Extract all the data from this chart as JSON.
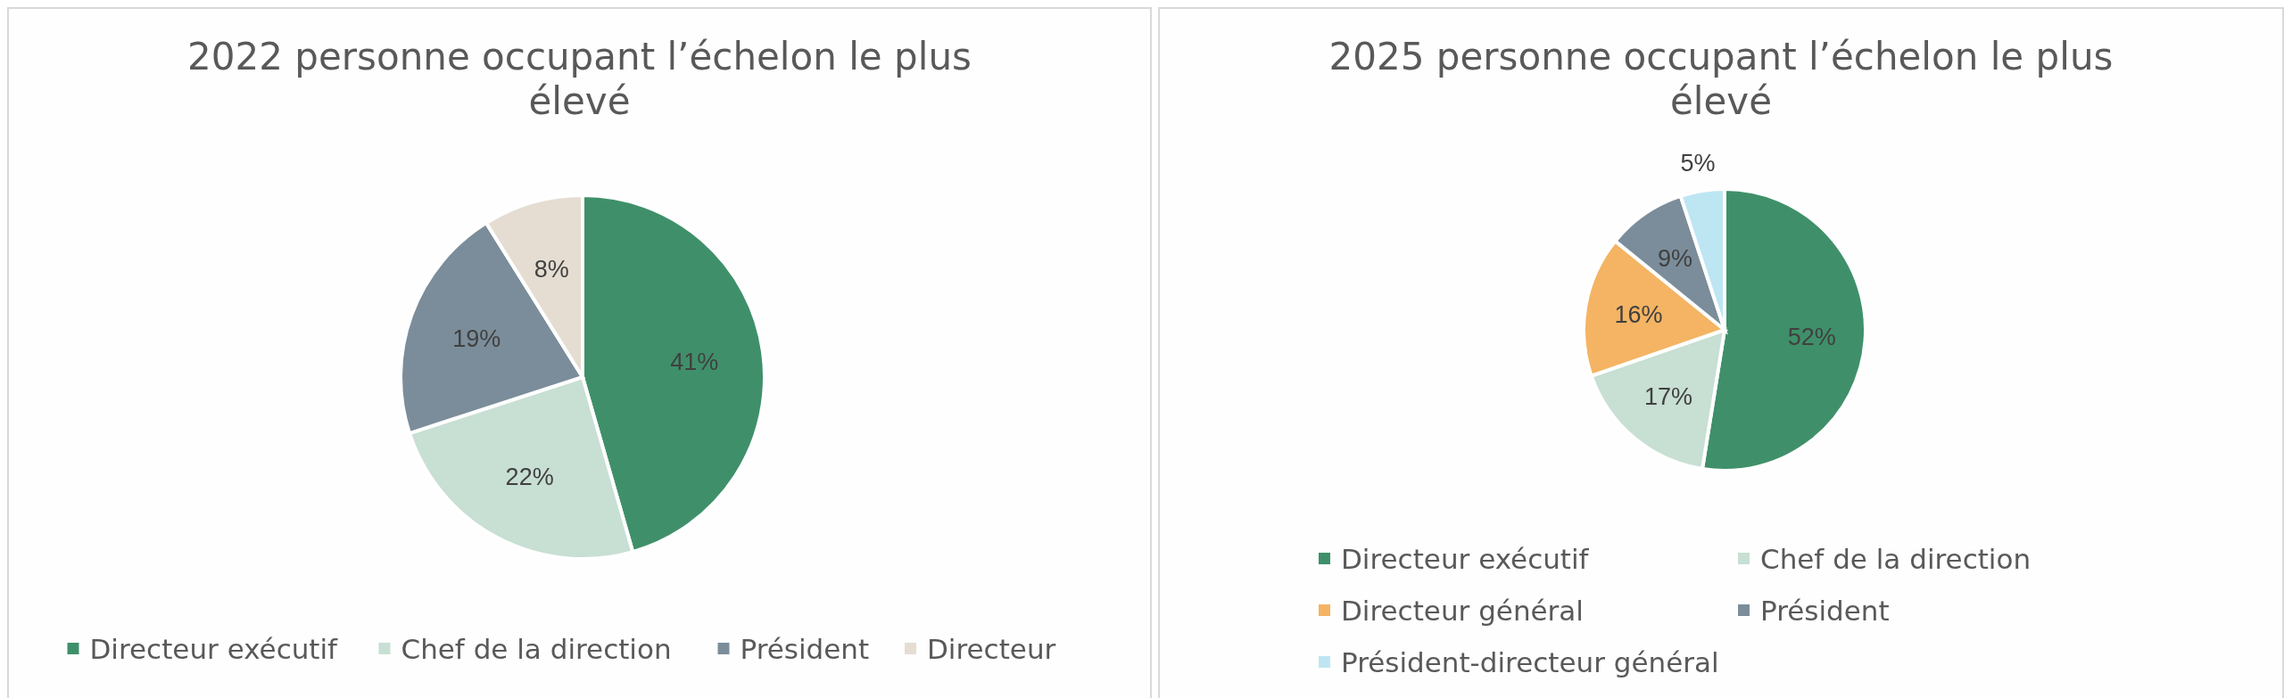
{
  "chart_data": [
    {
      "type": "pie",
      "title": "2022 personne occupant l’échelon le plus élevé",
      "categories": [
        "Directeur exécutif",
        "Chef de la direction",
        "Président",
        "Directeur"
      ],
      "values": [
        41,
        22,
        19,
        8
      ],
      "colors": [
        "#3f906a",
        "#c8dfd4",
        "#7b8d9a",
        "#e5ddd2"
      ],
      "value_labels": [
        "41%",
        "22%",
        "19%",
        "8%"
      ],
      "legend": "bottom"
    },
    {
      "type": "pie",
      "title": "2025 personne occupant l’échelon le plus élevé",
      "categories": [
        "Directeur exécutif",
        "Chef de la direction",
        "Directeur général",
        "Président",
        "Président-directeur général"
      ],
      "values": [
        52,
        17,
        16,
        9,
        5
      ],
      "colors": [
        "#3f906a",
        "#c8dfd4",
        "#f4b463",
        "#7b8d9a",
        "#bde6f2"
      ],
      "value_labels": [
        "52%",
        "17%",
        "16%",
        "9%",
        "5%"
      ],
      "legend": "bottom"
    }
  ]
}
